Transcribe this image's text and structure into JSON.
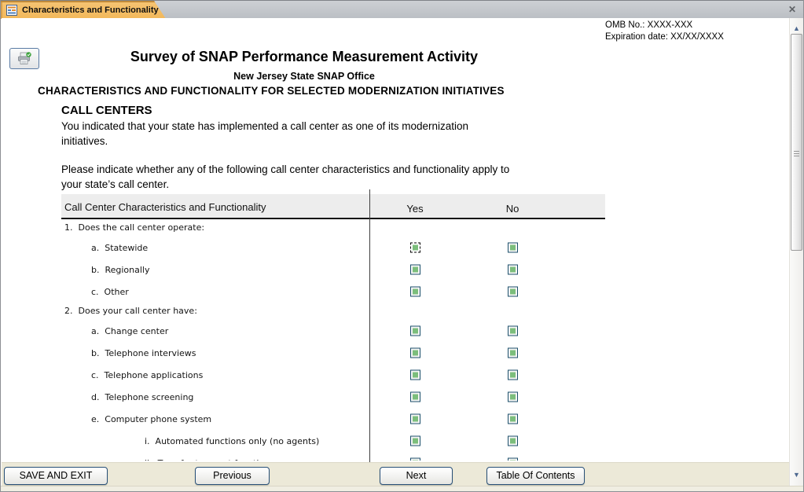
{
  "colors": {
    "tab_orange": "#F6C473",
    "checkbox_green": "#7CBE7C",
    "checkbox_border": "#1C4F6B",
    "header_fill": "#EDEDED",
    "footer_bg": "#ECE9D8",
    "button_border": "#274F77"
  },
  "icons": {
    "close": "✕",
    "scroll_up": "▲",
    "scroll_down": "▼"
  },
  "window": {
    "tab_title": "Characteristics and Functionality"
  },
  "header": {
    "omb_no": "OMB No.:  XXXX-XXX",
    "expiration": "Expiration date:  XX/XX/XXXX",
    "title": "Survey of SNAP Performance Measurement Activity",
    "subtitle": "New Jersey State SNAP Office",
    "section": "CHARACTERISTICS AND FUNCTIONALITY FOR SELECTED MODERNIZATION INITIATIVES"
  },
  "content": {
    "heading": "CALL CENTERS",
    "para1": "You indicated that your state has implemented a call center as one of its modernization\ninitiatives.",
    "para2": "Please indicate whether any of the following call center characteristics and functionality apply to\nyour state’s call center."
  },
  "table": {
    "col_question": "Call Center Characteristics and Functionality",
    "col_yes": "Yes",
    "col_no": "No",
    "rows": [
      {
        "label": "1.  Does the call center operate:",
        "indent": 0,
        "checkboxes": false
      },
      {
        "label": "a.  Statewide",
        "indent": 1,
        "checkboxes": true,
        "yes_checked": true,
        "no_checked": true,
        "focused": "yes"
      },
      {
        "label": "b.  Regionally",
        "indent": 1,
        "checkboxes": true,
        "yes_checked": true,
        "no_checked": true
      },
      {
        "label": "c.  Other",
        "indent": 1,
        "checkboxes": true,
        "yes_checked": true,
        "no_checked": true
      },
      {
        "label": "2.  Does your call center have:",
        "indent": 0,
        "checkboxes": false
      },
      {
        "label": "a.  Change center",
        "indent": 1,
        "checkboxes": true,
        "yes_checked": true,
        "no_checked": true
      },
      {
        "label": "b.  Telephone interviews",
        "indent": 1,
        "checkboxes": true,
        "yes_checked": true,
        "no_checked": true
      },
      {
        "label": "c.  Telephone applications",
        "indent": 1,
        "checkboxes": true,
        "yes_checked": true,
        "no_checked": true
      },
      {
        "label": "d.  Telephone screening",
        "indent": 1,
        "checkboxes": true,
        "yes_checked": true,
        "no_checked": true
      },
      {
        "label": "e.  Computer phone system",
        "indent": 1,
        "checkboxes": true,
        "yes_checked": true,
        "no_checked": true
      },
      {
        "label": "i.  Automated functions only (no agents)",
        "indent": 2,
        "checkboxes": true,
        "yes_checked": true,
        "no_checked": true
      },
      {
        "label": "ii.  Transfer to agent function",
        "indent": 2,
        "checkboxes": true,
        "yes_checked": true,
        "no_checked": true
      }
    ]
  },
  "footer": {
    "buttons": [
      {
        "label": "SAVE AND EXIT"
      },
      {
        "label": "Previous"
      },
      {
        "label": "Next"
      },
      {
        "label": "Table Of Contents"
      }
    ]
  }
}
